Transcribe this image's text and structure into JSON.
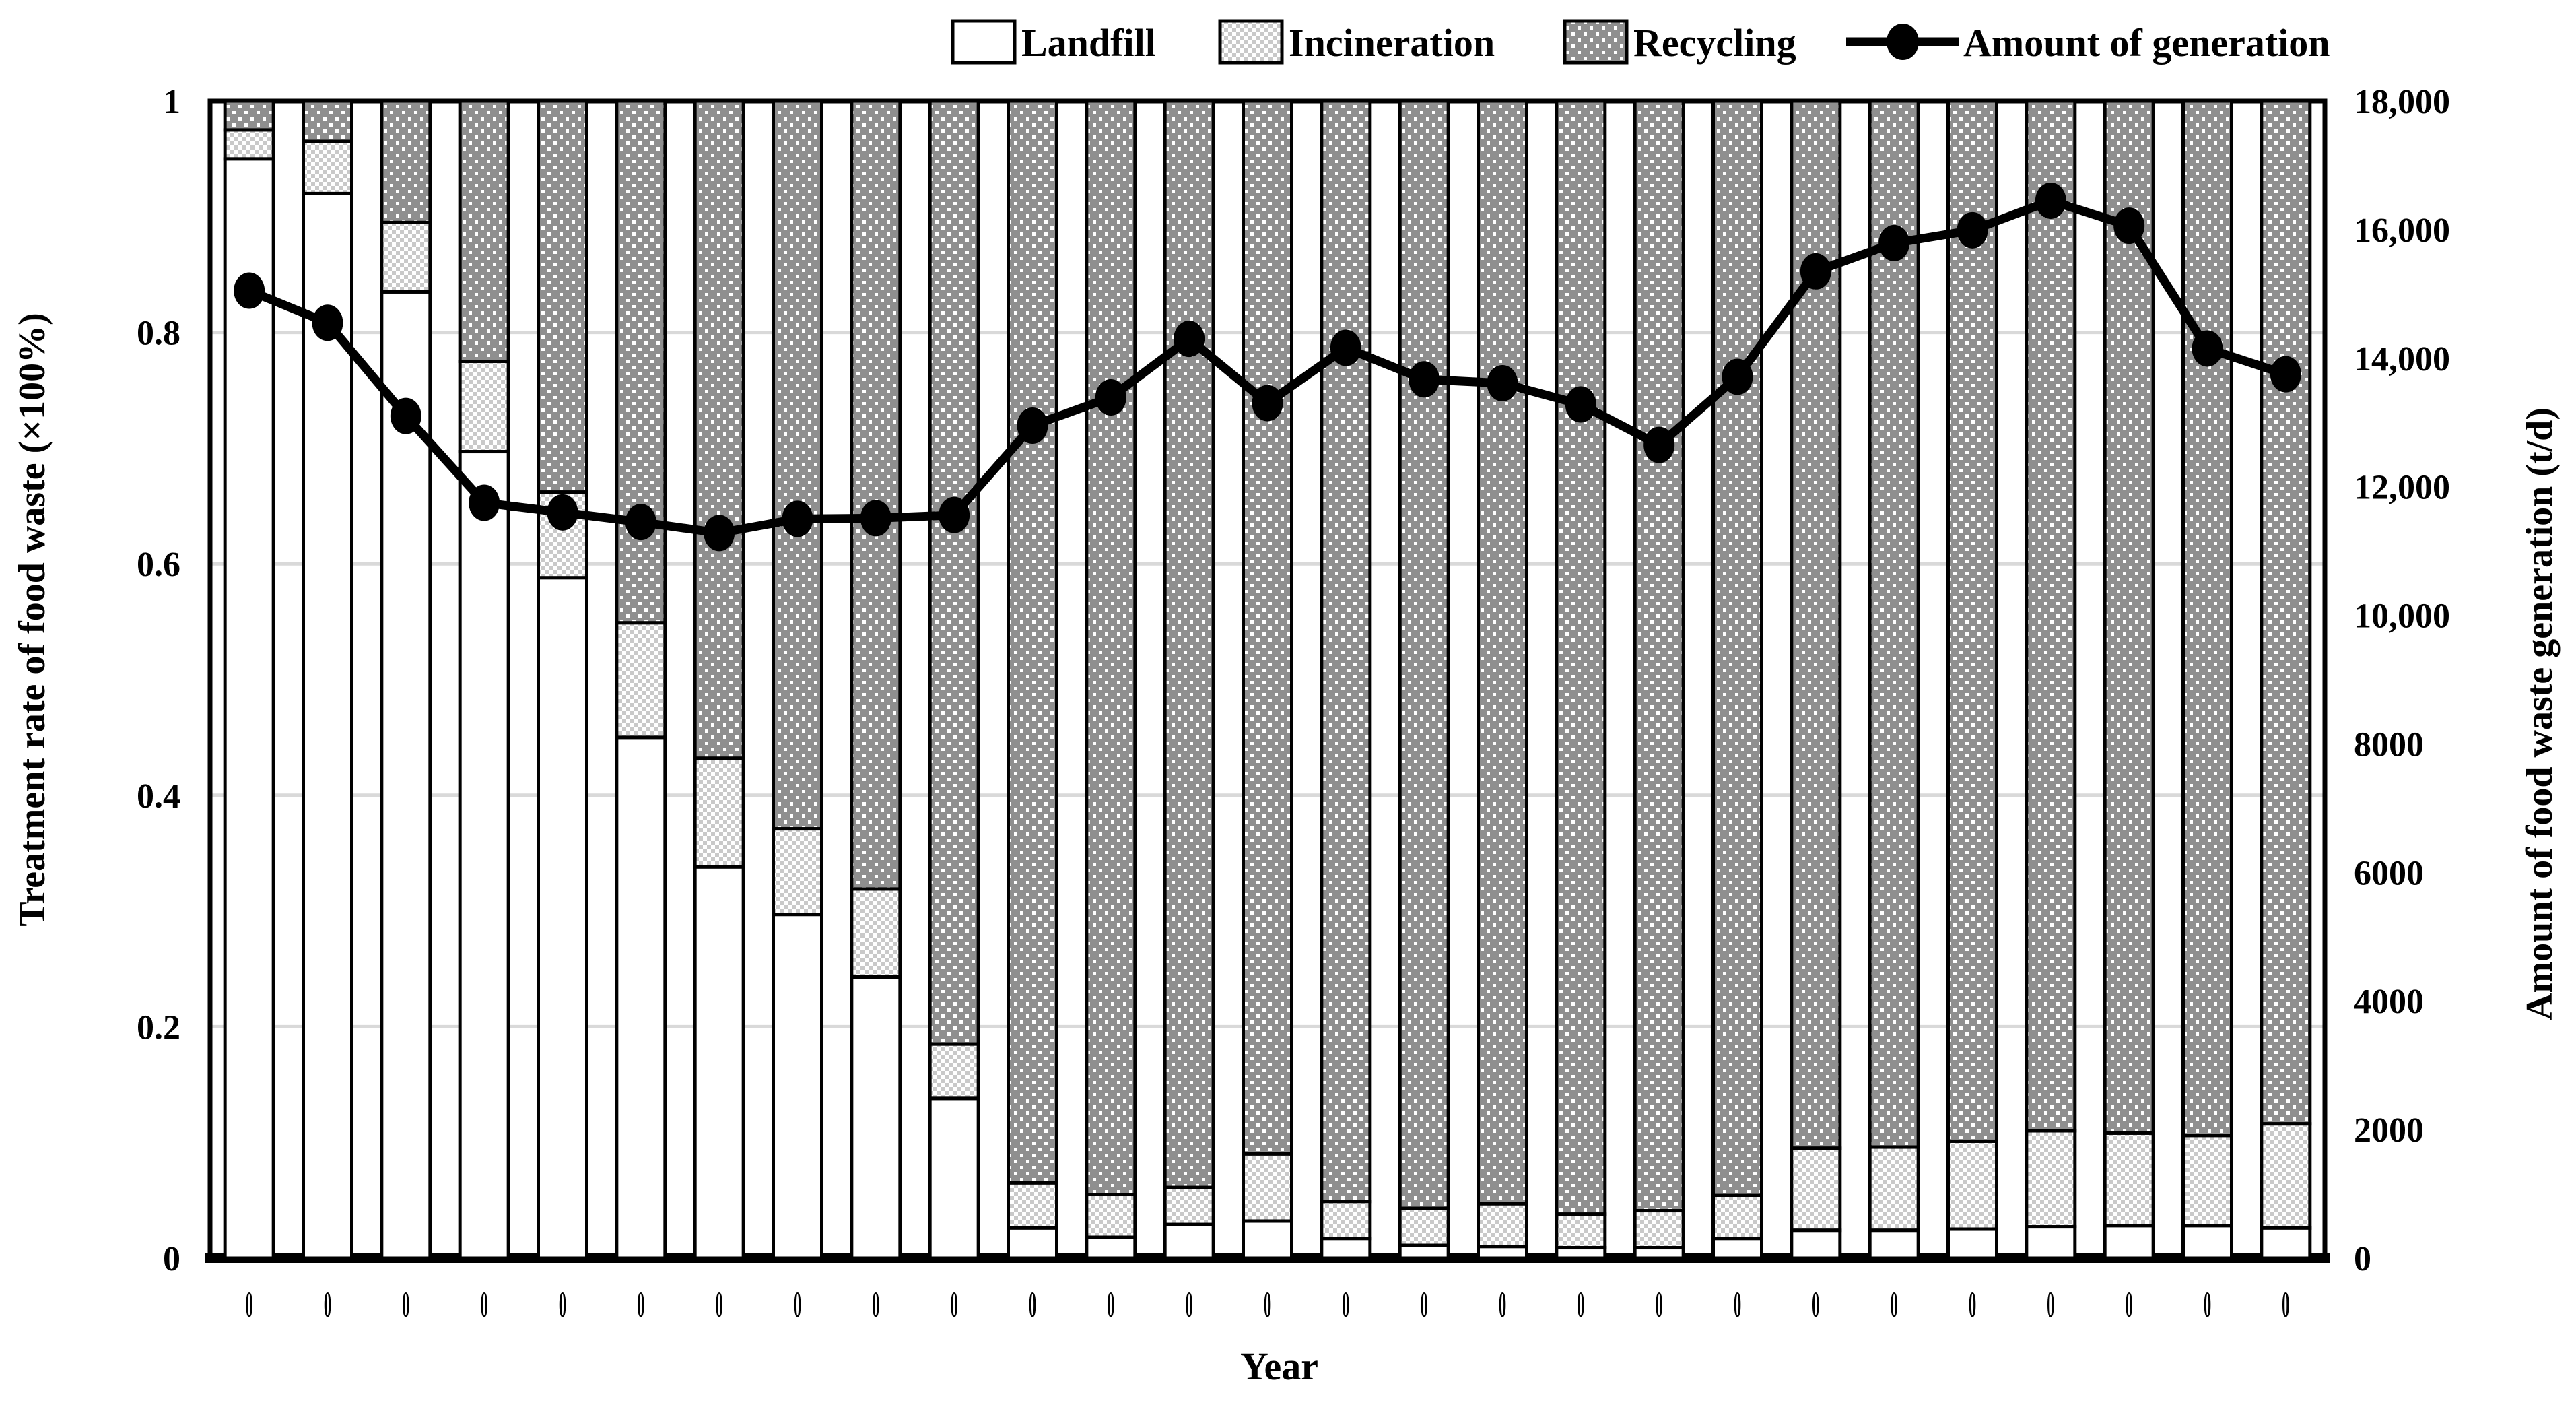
{
  "chart_data": {
    "type": "bar",
    "subtype": "stacked-bar-with-line",
    "title": "",
    "categories": [
      "0",
      "0",
      "0",
      "0",
      "0",
      "0",
      "0",
      "0",
      "0",
      "0",
      "0",
      "0",
      "0",
      "0",
      "0",
      "0",
      "0",
      "0",
      "0",
      "0",
      "0",
      "0",
      "0",
      "0",
      "0",
      "0",
      "0"
    ],
    "bar_series": [
      {
        "name": "Landfill",
        "swatch": "white",
        "values": [
          0.95,
          0.92,
          0.835,
          0.697,
          0.588,
          0.45,
          0.338,
          0.297,
          0.243,
          0.138,
          0.026,
          0.018,
          0.029,
          0.032,
          0.017,
          0.011,
          0.01,
          0.009,
          0.009,
          0.017,
          0.024,
          0.024,
          0.025,
          0.027,
          0.028,
          0.028,
          0.026
        ]
      },
      {
        "name": "Incineration",
        "swatch": "light-dots",
        "values": [
          0.025,
          0.045,
          0.06,
          0.078,
          0.074,
          0.099,
          0.094,
          0.074,
          0.076,
          0.047,
          0.039,
          0.037,
          0.032,
          0.058,
          0.032,
          0.032,
          0.037,
          0.029,
          0.032,
          0.037,
          0.071,
          0.072,
          0.076,
          0.083,
          0.08,
          0.078,
          0.09
        ]
      },
      {
        "name": "Recycling",
        "swatch": "dark-dots",
        "values": [
          0.025,
          0.035,
          0.105,
          0.225,
          0.338,
          0.451,
          0.568,
          0.629,
          0.681,
          0.815,
          0.935,
          0.945,
          0.939,
          0.91,
          0.951,
          0.957,
          0.953,
          0.962,
          0.959,
          0.946,
          0.905,
          0.904,
          0.899,
          0.89,
          0.892,
          0.894,
          0.884
        ]
      }
    ],
    "line_series": {
      "name": "Amount of generation",
      "values": [
        15050,
        14550,
        13100,
        11750,
        11600,
        11450,
        11280,
        11500,
        11510,
        11560,
        12950,
        13390,
        14300,
        13300,
        14160,
        13670,
        13610,
        13280,
        12650,
        13710,
        15350,
        15790,
        15990,
        16450,
        16060,
        14150,
        13750
      ]
    },
    "axes": {
      "left": {
        "label": "Treatment rate of food waste (×100%)",
        "min": 0,
        "max": 1,
        "ticks": [
          {
            "value": 0,
            "label": "0"
          },
          {
            "value": 0.2,
            "label": "0.2"
          },
          {
            "value": 0.4,
            "label": "0.4"
          },
          {
            "value": 0.6,
            "label": "0.6"
          },
          {
            "value": 0.8,
            "label": "0.8"
          },
          {
            "value": 1,
            "label": "1"
          }
        ]
      },
      "right": {
        "label": "Amount of food waste generation (t/d)",
        "min": 0,
        "max": 18000,
        "ticks": [
          {
            "value": 0,
            "label": "0"
          },
          {
            "value": 2000,
            "label": "2000"
          },
          {
            "value": 4000,
            "label": "4000"
          },
          {
            "value": 6000,
            "label": "6000"
          },
          {
            "value": 8000,
            "label": "8000"
          },
          {
            "value": 10000,
            "label": "10,000"
          },
          {
            "value": 12000,
            "label": "12,000"
          },
          {
            "value": 14000,
            "label": "14,000"
          },
          {
            "value": 16000,
            "label": "16,000"
          },
          {
            "value": 18000,
            "label": "18,000"
          }
        ]
      },
      "x": {
        "label": "Year"
      }
    },
    "legend": [
      {
        "label": "Landfill",
        "swatch": "white"
      },
      {
        "label": "Incineration",
        "swatch": "light-dots"
      },
      {
        "label": "Recycling",
        "swatch": "dark-dots"
      },
      {
        "label": "Amount of generation",
        "swatch": "line-marker"
      }
    ],
    "layout_hints": {
      "grid": "horizontal-only",
      "legend_position": "top",
      "bars_normalized_to": 1
    },
    "colors": {
      "bar_stroke": "#000000",
      "landfill_fill": "#ffffff",
      "incineration_fill": "#c9c9c9",
      "recycling_fill": "#8f8f8f",
      "gridline": "#d9d9d9",
      "line": "#000000",
      "background": "#ffffff"
    }
  }
}
